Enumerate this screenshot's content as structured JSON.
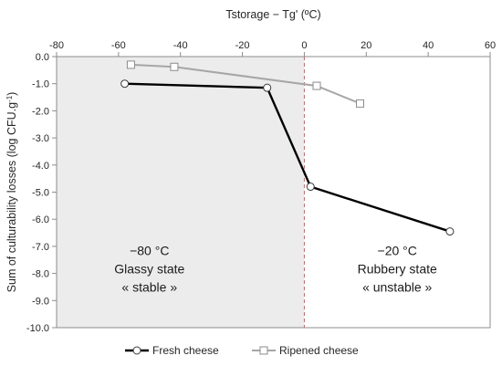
{
  "chart_data": {
    "type": "line",
    "xlabel": "Tstorage − Tg' (ºC)",
    "ylabel": "Sum of culturability losses (log CFU.g",
    "ylabel_sup": "-1",
    "ylabel_close": ")",
    "xlim": [
      -80,
      60
    ],
    "ylim": [
      -10,
      0
    ],
    "x_ticks": [
      -80,
      -60,
      -40,
      -20,
      0,
      20,
      40,
      60
    ],
    "x_tick_labels": [
      "-80",
      "-60",
      "-40",
      "-20",
      "0",
      "20",
      "40",
      "60"
    ],
    "y_ticks": [
      0,
      -1,
      -2,
      -3,
      -4,
      -5,
      -6,
      -7,
      -8,
      -9,
      -10
    ],
    "y_tick_labels": [
      "0.0",
      "-1.0",
      "-2.0",
      "-3.0",
      "-4.0",
      "-5.0",
      "-6.0",
      "-7.0",
      "-8.0",
      "-9.0",
      "-10.0"
    ],
    "x_axis_position": "top",
    "grid": false,
    "shaded_region": {
      "x_from": -80,
      "x_to": 0,
      "color": "#ececec"
    },
    "reference_line": {
      "x": 0,
      "color": "#e85a5a",
      "style": "dashed"
    },
    "series": [
      {
        "name": "Fresh cheese",
        "color": "#000000",
        "marker": "circle",
        "points": [
          {
            "x": -58,
            "y": -1.0
          },
          {
            "x": -12,
            "y": -1.15
          },
          {
            "x": 2,
            "y": -4.8
          },
          {
            "x": 47,
            "y": -6.45
          }
        ]
      },
      {
        "name": "Ripened cheese",
        "color": "#a6a6a6",
        "marker": "square",
        "points": [
          {
            "x": -56,
            "y": -0.3
          },
          {
            "x": -42,
            "y": -0.38
          },
          {
            "x": 4,
            "y": -1.08
          },
          {
            "x": 18,
            "y": -1.73
          }
        ]
      }
    ],
    "annotations": [
      {
        "lines": [
          "−80 °C",
          "Glassy state",
          "« stable »"
        ],
        "data_x": -50,
        "data_y": -8.0
      },
      {
        "lines": [
          "−20 °C",
          "Rubbery state",
          "« unstable »"
        ],
        "data_x": 30,
        "data_y": -8.0
      }
    ],
    "legend": {
      "position": "bottom",
      "entries": [
        "Fresh cheese",
        "Ripened cheese"
      ]
    }
  }
}
